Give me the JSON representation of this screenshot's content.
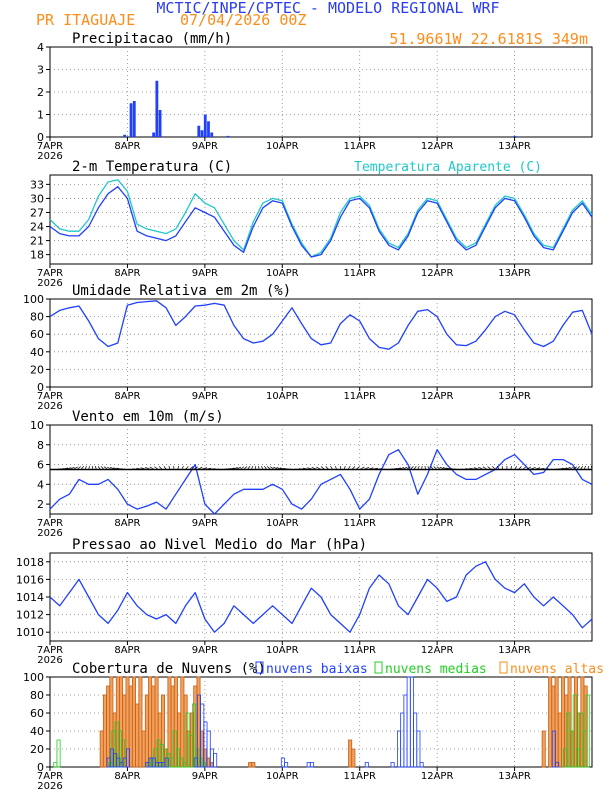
{
  "header": {
    "title": "MCTIC/INPE/CPTEC - MODELO REGIONAL WRF",
    "station": "PR ITAGUAJE",
    "run": "07/04/2026 00Z",
    "location": "51.9661W 22.6181S 349m"
  },
  "colors": {
    "title": "#2a3cf0",
    "orange": "#ff8c1a",
    "blue_series": "#2040ff",
    "cyan_series": "#20c8c8",
    "green_series": "#20d020",
    "cloud_orange": "#f4a05a"
  },
  "x_axis": {
    "day_labels": [
      "7APR",
      "8APR",
      "9APR",
      "10APR",
      "11APR",
      "12APR",
      "13APR"
    ],
    "year_label": "2026"
  },
  "chart_data": [
    {
      "type": "bar",
      "title": "Precipitacao (mm/h)",
      "ylim": [
        0,
        4
      ],
      "yticks": [
        0,
        1,
        2,
        3,
        4
      ],
      "x_unit": "hours since 7APR 00Z",
      "x": [
        23,
        25,
        26,
        32,
        33,
        34,
        46,
        47,
        48,
        49,
        50,
        55,
        144
      ],
      "values": [
        0.1,
        1.5,
        1.6,
        0.2,
        2.5,
        1.2,
        0.5,
        0.3,
        1.0,
        0.7,
        0.2,
        0.05,
        0.05
      ]
    },
    {
      "type": "line",
      "title": "2-m Temperatura (C)",
      "legend": [
        "Temperatura Aparente (C)"
      ],
      "ylim": [
        16,
        35
      ],
      "yticks": [
        18,
        21,
        24,
        27,
        30,
        33
      ],
      "x_unit": "hours since 7APR 00Z",
      "series": [
        {
          "x": [
            0,
            3,
            6,
            9,
            12,
            15,
            18,
            21,
            24,
            27,
            30,
            33,
            36,
            39,
            42,
            45,
            48,
            51,
            54,
            57,
            60,
            63,
            66,
            69,
            72,
            75,
            78,
            81,
            84,
            87,
            90,
            93,
            96,
            99,
            102,
            105,
            108,
            111,
            114,
            117,
            120,
            123,
            126,
            129,
            132,
            135,
            138,
            141,
            144,
            147,
            150,
            153,
            156,
            159,
            162,
            165,
            168
          ],
          "values": [
            24,
            22.5,
            22,
            22,
            24,
            28,
            31,
            32.5,
            30,
            23,
            22,
            21.5,
            21,
            22,
            25,
            28,
            27,
            26,
            23,
            20,
            18.5,
            24,
            28,
            29.5,
            29,
            24,
            20,
            17.5,
            18,
            21,
            26,
            29.5,
            30,
            28,
            23,
            20,
            19,
            22,
            27,
            29.5,
            29,
            25,
            21,
            19,
            20,
            24,
            28,
            30,
            29.5,
            26,
            22,
            19.5,
            19,
            23,
            27,
            29,
            26
          ]
        },
        {
          "name": "Temperatura Aparente (C)",
          "x": [
            0,
            3,
            6,
            9,
            12,
            15,
            18,
            21,
            24,
            27,
            30,
            33,
            36,
            39,
            42,
            45,
            48,
            51,
            54,
            57,
            60,
            63,
            66,
            69,
            72,
            75,
            78,
            81,
            84,
            87,
            90,
            93,
            96,
            99,
            102,
            105,
            108,
            111,
            114,
            117,
            120,
            123,
            126,
            129,
            132,
            135,
            138,
            141,
            144,
            147,
            150,
            153,
            156,
            159,
            162,
            165,
            168
          ],
          "values": [
            25.5,
            23.5,
            23,
            23,
            25.5,
            30.5,
            33.5,
            34,
            31.5,
            24.5,
            23.5,
            23,
            22.5,
            23.5,
            27,
            31,
            29,
            28,
            24.5,
            21,
            19,
            25,
            29,
            30,
            29.5,
            24.5,
            20.5,
            17.5,
            18.5,
            21.5,
            27,
            30,
            30.5,
            28.5,
            23.5,
            20.5,
            19.5,
            22.5,
            27.5,
            30,
            29.5,
            25.5,
            21.5,
            19.5,
            20.5,
            24.5,
            28.5,
            30.5,
            30,
            26.5,
            22.5,
            20,
            19.5,
            23.5,
            27.5,
            29.5,
            26.5
          ]
        }
      ]
    },
    {
      "type": "line",
      "title": "Umidade Relativa em 2m (%)",
      "ylim": [
        0,
        100
      ],
      "yticks": [
        0,
        20,
        40,
        60,
        80,
        100
      ],
      "x_unit": "hours since 7APR 00Z",
      "series": [
        {
          "x": [
            0,
            3,
            6,
            9,
            12,
            15,
            18,
            21,
            24,
            27,
            30,
            33,
            36,
            39,
            42,
            45,
            48,
            51,
            54,
            57,
            60,
            63,
            66,
            69,
            72,
            75,
            78,
            81,
            84,
            87,
            90,
            93,
            96,
            99,
            102,
            105,
            108,
            111,
            114,
            117,
            120,
            123,
            126,
            129,
            132,
            135,
            138,
            141,
            144,
            147,
            150,
            153,
            156,
            159,
            162,
            165,
            168
          ],
          "values": [
            80,
            87,
            90,
            92,
            75,
            55,
            46,
            50,
            93,
            96,
            97,
            98,
            90,
            70,
            80,
            92,
            93,
            95,
            93,
            70,
            55,
            50,
            52,
            60,
            75,
            90,
            72,
            55,
            48,
            50,
            72,
            82,
            75,
            55,
            45,
            43,
            50,
            70,
            86,
            88,
            80,
            60,
            48,
            47,
            52,
            65,
            80,
            86,
            82,
            65,
            50,
            46,
            52,
            70,
            85,
            87,
            60
          ]
        }
      ]
    },
    {
      "type": "line",
      "title": "Vento em 10m (m/s)",
      "ylim": [
        1,
        10
      ],
      "yticks": [
        2,
        4,
        6,
        8,
        10
      ],
      "x_unit": "hours since 7APR 00Z",
      "series": [
        {
          "x": [
            0,
            3,
            6,
            9,
            12,
            15,
            18,
            21,
            24,
            27,
            30,
            33,
            36,
            39,
            42,
            45,
            48,
            51,
            54,
            57,
            60,
            63,
            66,
            69,
            72,
            75,
            78,
            81,
            84,
            87,
            90,
            93,
            96,
            99,
            102,
            105,
            108,
            111,
            114,
            117,
            120,
            123,
            126,
            129,
            132,
            135,
            138,
            141,
            144,
            147,
            150,
            153,
            156,
            159,
            162,
            165,
            168
          ],
          "values": [
            1.5,
            2.5,
            3,
            4.5,
            4,
            4,
            4.5,
            3.5,
            2,
            1.5,
            1.8,
            2.2,
            1.5,
            3,
            4.5,
            6,
            2,
            1,
            2,
            3,
            3.5,
            3.5,
            3.5,
            4,
            3.5,
            2,
            1.5,
            2.5,
            4,
            4.5,
            5,
            3.5,
            1.5,
            2.5,
            5,
            7,
            7.5,
            6,
            3,
            5,
            7.5,
            6,
            5,
            4.5,
            4.5,
            5,
            5.5,
            6.5,
            7,
            6,
            5,
            5.2,
            6.5,
            6.5,
            6,
            4.5,
            4
          ]
        }
      ]
    },
    {
      "type": "line",
      "title": "Pressao ao Nivel Medio do Mar (hPa)",
      "ylim": [
        1009,
        1019
      ],
      "yticks": [
        1010,
        1012,
        1014,
        1016,
        1018
      ],
      "x_unit": "hours since 7APR 00Z",
      "series": [
        {
          "x": [
            0,
            3,
            6,
            9,
            12,
            15,
            18,
            21,
            24,
            27,
            30,
            33,
            36,
            39,
            42,
            45,
            48,
            51,
            54,
            57,
            60,
            63,
            66,
            69,
            72,
            75,
            78,
            81,
            84,
            87,
            90,
            93,
            96,
            99,
            102,
            105,
            108,
            111,
            114,
            117,
            120,
            123,
            126,
            129,
            132,
            135,
            138,
            141,
            144,
            147,
            150,
            153,
            156,
            159,
            162,
            165,
            168
          ],
          "values": [
            1014,
            1013,
            1014.5,
            1016,
            1014,
            1012,
            1011,
            1012.5,
            1014.5,
            1013,
            1012,
            1011.5,
            1012,
            1011,
            1013,
            1014.5,
            1011.5,
            1010,
            1011,
            1013,
            1012,
            1011,
            1012,
            1013,
            1012,
            1011,
            1013,
            1015,
            1014,
            1012,
            1011,
            1010,
            1012,
            1015,
            1016.5,
            1015.5,
            1013,
            1012,
            1014,
            1016,
            1015,
            1013.5,
            1014,
            1016.5,
            1017.5,
            1018,
            1016,
            1015,
            1014.5,
            1015.5,
            1014,
            1013,
            1014,
            1013,
            1012,
            1010.5,
            1011.5
          ]
        }
      ]
    },
    {
      "type": "bar",
      "title": "Cobertura de Nuvens (%)",
      "ylim": [
        0,
        100
      ],
      "yticks": [
        0,
        20,
        40,
        60,
        80,
        100
      ],
      "x_unit": "hours since 7APR 00Z",
      "series": [
        {
          "name": "nuvens baixas",
          "x": [
            18,
            19,
            20,
            21,
            22,
            23,
            24,
            30,
            31,
            32,
            33,
            34,
            35,
            36,
            45,
            46,
            47,
            48,
            49,
            50,
            51,
            72,
            73,
            80,
            81,
            98,
            106,
            108,
            109,
            110,
            111,
            112,
            113,
            114,
            115,
            156,
            157
          ],
          "values": [
            10,
            20,
            15,
            10,
            5,
            10,
            20,
            5,
            10,
            10,
            5,
            5,
            5,
            10,
            10,
            80,
            70,
            50,
            40,
            20,
            15,
            10,
            5,
            5,
            5,
            5,
            5,
            40,
            60,
            80,
            100,
            100,
            60,
            40,
            5,
            40,
            5
          ]
        },
        {
          "name": "nuvens medias",
          "x": [
            1,
            2,
            18,
            19,
            20,
            21,
            22,
            30,
            31,
            32,
            33,
            34,
            35,
            36,
            37,
            38,
            39,
            40,
            41,
            42,
            43,
            44,
            45,
            46,
            47,
            159,
            160,
            161,
            162,
            163,
            164,
            165,
            166
          ],
          "values": [
            5,
            30,
            5,
            40,
            50,
            40,
            30,
            5,
            10,
            20,
            30,
            25,
            20,
            15,
            10,
            40,
            20,
            10,
            5,
            60,
            35,
            70,
            20,
            10,
            5,
            20,
            60,
            40,
            80,
            20,
            60,
            40,
            80
          ]
        },
        {
          "name": "nuvens altas",
          "x": [
            16,
            17,
            18,
            19,
            20,
            21,
            22,
            23,
            24,
            25,
            26,
            27,
            28,
            29,
            30,
            31,
            32,
            33,
            34,
            35,
            36,
            37,
            38,
            39,
            40,
            41,
            42,
            43,
            44,
            45,
            46,
            47,
            48,
            49,
            50,
            62,
            63,
            93,
            94,
            153,
            155,
            156,
            157,
            158,
            159,
            160,
            161,
            162,
            163,
            164,
            165,
            166
          ],
          "values": [
            40,
            80,
            90,
            100,
            60,
            100,
            100,
            80,
            100,
            90,
            100,
            70,
            100,
            40,
            80,
            100,
            90,
            100,
            60,
            80,
            20,
            100,
            90,
            100,
            60,
            100,
            80,
            40,
            60,
            90,
            100,
            40,
            20,
            10,
            5,
            5,
            5,
            30,
            20,
            40,
            100,
            90,
            100,
            60,
            100,
            80,
            100,
            40,
            100,
            60,
            100,
            90
          ]
        }
      ]
    }
  ]
}
